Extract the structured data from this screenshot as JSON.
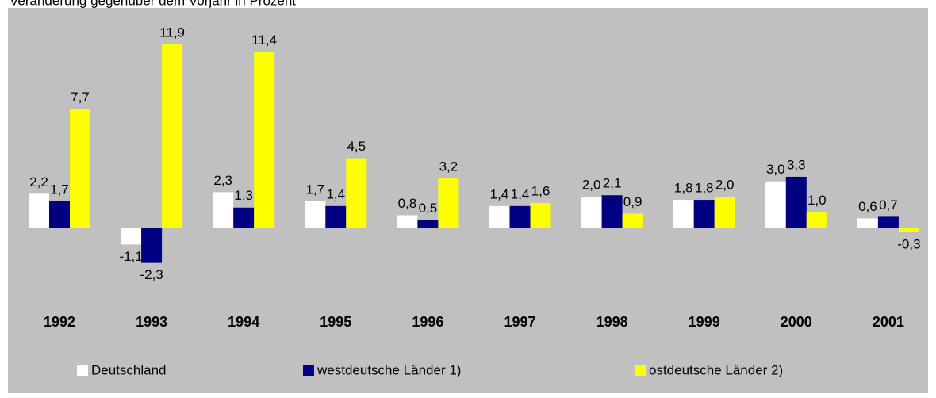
{
  "chart_data": {
    "type": "bar",
    "subtitle": "Veränderung gegenüber dem Vorjahr in Prozent",
    "categories": [
      "1992",
      "1993",
      "1994",
      "1995",
      "1996",
      "1997",
      "1998",
      "1999",
      "2000",
      "2001"
    ],
    "series": [
      {
        "name": "Deutschland",
        "color": "#ffffff",
        "values": [
          2.2,
          -1.1,
          2.3,
          1.7,
          0.8,
          1.4,
          2.0,
          1.8,
          3.0,
          0.6
        ],
        "value_labels": [
          "2,2",
          "-1,1",
          "2,3",
          "1,7",
          "0,8",
          "1,4",
          "2,0",
          "1,8",
          "3,0",
          "0,6"
        ]
      },
      {
        "name": "westdeutsche Länder 1)",
        "color": "#000080",
        "values": [
          1.7,
          -2.3,
          1.3,
          1.4,
          0.5,
          1.4,
          2.1,
          1.8,
          3.3,
          0.7
        ],
        "value_labels": [
          "1,7",
          "-2,3",
          "1,3",
          "1,4",
          "0,5",
          "1,4",
          "2,1",
          "1,8",
          "3,3",
          "0,7"
        ]
      },
      {
        "name": "ostdeutsche Länder 2)",
        "color": "#ffff00",
        "values": [
          7.7,
          11.9,
          11.4,
          4.5,
          3.2,
          1.6,
          0.9,
          2.0,
          1.0,
          -0.3
        ],
        "value_labels": [
          "7,7",
          "11,9",
          "11,4",
          "4,5",
          "3,2",
          "1,6",
          "0,9",
          "2,0",
          "1,0",
          "-0,3"
        ]
      }
    ],
    "legend": "bottom"
  }
}
